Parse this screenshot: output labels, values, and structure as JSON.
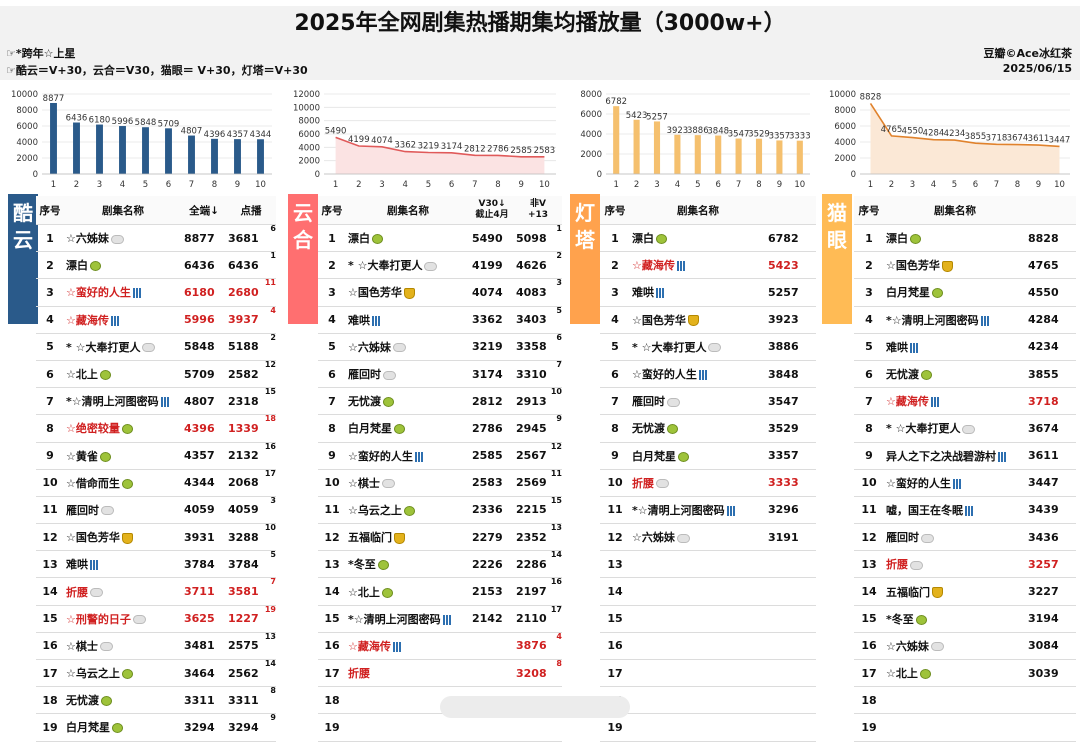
{
  "title": "2025年全网剧集热播期集均播放量（3000w+）",
  "notes": [
    "☞*跨年☆上星",
    "☞酷云＝V+30，云合＝V30，猫眼＝ V+30，灯塔＝V+30"
  ],
  "source": [
    "豆瓣©Ace冰红茶",
    "2025/06/15"
  ],
  "colors": {
    "kuyun": "#2a5a8a",
    "yunhe": "#ff6f70",
    "dengta": "#ffa24d",
    "maoyan": "#ffbb55",
    "line_yunhe": "#e05a5a",
    "line_maoyan": "#e0822c",
    "bar_dengta": "#f5c06e"
  },
  "chart_data": [
    {
      "type": "bar",
      "platform": "酷云",
      "categories": [
        "1",
        "2",
        "3",
        "4",
        "5",
        "6",
        "7",
        "8",
        "9",
        "10"
      ],
      "values": [
        8877,
        6436,
        6180,
        5996,
        5848,
        5709,
        4807,
        4396,
        4357,
        4344
      ],
      "yticks": [
        "10000",
        "8000",
        "6000",
        "4000",
        "2000",
        "0"
      ],
      "ylim": [
        0,
        10000
      ]
    },
    {
      "type": "area",
      "platform": "云合",
      "categories": [
        "1",
        "2",
        "3",
        "4",
        "5",
        "6",
        "7",
        "8",
        "9",
        "10"
      ],
      "values": [
        5490,
        4199,
        4074,
        3362,
        3219,
        3174,
        2812,
        2786,
        2585,
        2583
      ],
      "yticks": [
        "12000",
        "10000",
        "8000",
        "6000",
        "4000",
        "2000",
        "0"
      ],
      "ylim": [
        0,
        12000
      ]
    },
    {
      "type": "bar",
      "platform": "灯塔",
      "categories": [
        "1",
        "2",
        "3",
        "4",
        "5",
        "6",
        "7",
        "8",
        "9",
        "10"
      ],
      "values": [
        6782,
        5423,
        5257,
        3923,
        3886,
        3848,
        3547,
        3529,
        3357,
        3333
      ],
      "yticks": [
        "8000",
        "6000",
        "4000",
        "2000",
        "0"
      ],
      "ylim": [
        0,
        8000
      ]
    },
    {
      "type": "area",
      "platform": "猫眼",
      "categories": [
        "1",
        "2",
        "3",
        "4",
        "5",
        "6",
        "7",
        "8",
        "9",
        "10"
      ],
      "values": [
        8828,
        4765,
        4550,
        4284,
        4234,
        3855,
        3718,
        3674,
        3611,
        3447
      ],
      "yticks": [
        "10000",
        "8000",
        "6000",
        "4000",
        "2000",
        "0"
      ],
      "ylim": [
        0,
        10000
      ]
    }
  ],
  "tables": [
    {
      "tag": "酷云",
      "headers": [
        "序号",
        "剧集名称",
        "全端↓",
        "点播"
      ],
      "rows": [
        {
          "n": "1",
          "name": "☆六姊妹",
          "icon": "cloud-icon",
          "v": "8877",
          "v2": "3681",
          "r": "6"
        },
        {
          "n": "2",
          "name": "漂白",
          "icon": "green-dot-icon",
          "v": "6436",
          "v2": "6436",
          "r": "1"
        },
        {
          "n": "3",
          "name": "☆蛮好的人生",
          "icon": "bars-icon",
          "v": "6180",
          "v2": "2680",
          "r": "11",
          "red": true
        },
        {
          "n": "4",
          "name": "☆藏海传",
          "icon": "bars-icon",
          "v": "5996",
          "v2": "3937",
          "r": "4",
          "red": true
        },
        {
          "n": "5",
          "name": "* ☆大奉打更人",
          "icon": "cloud-icon",
          "v": "5848",
          "v2": "5188",
          "r": "2"
        },
        {
          "n": "6",
          "name": "☆北上",
          "icon": "green-dot-icon",
          "v": "5709",
          "v2": "2582",
          "r": "12"
        },
        {
          "n": "7",
          "name": "*☆清明上河图密码",
          "icon": "bars-icon",
          "v": "4807",
          "v2": "2318",
          "r": "15"
        },
        {
          "n": "8",
          "name": "☆绝密较量",
          "icon": "green-dot-icon",
          "v": "4396",
          "v2": "1339",
          "r": "18",
          "red": true
        },
        {
          "n": "9",
          "name": "☆黄雀",
          "icon": "green-dot-icon",
          "v": "4357",
          "v2": "2132",
          "r": "16"
        },
        {
          "n": "10",
          "name": "☆借命而生",
          "icon": "green-dot-icon",
          "v": "4344",
          "v2": "2068",
          "r": "17"
        },
        {
          "n": "11",
          "name": "雁回时",
          "icon": "cloud-icon",
          "v": "4059",
          "v2": "4059",
          "r": "3"
        },
        {
          "n": "12",
          "name": "☆国色芳华",
          "icon": "shield-icon",
          "v": "3931",
          "v2": "3288",
          "r": "10"
        },
        {
          "n": "13",
          "name": "难哄",
          "icon": "bars-icon",
          "v": "3784",
          "v2": "3784",
          "r": "5"
        },
        {
          "n": "14",
          "name": "折腰",
          "icon": "cloud-icon",
          "v": "3711",
          "v2": "3581",
          "r": "7",
          "red": true
        },
        {
          "n": "15",
          "name": "☆刑警的日子",
          "icon": "cloud-icon",
          "v": "3625",
          "v2": "1227",
          "r": "19",
          "red": true
        },
        {
          "n": "16",
          "name": "☆棋士",
          "icon": "cloud-icon",
          "v": "3481",
          "v2": "2575",
          "r": "13"
        },
        {
          "n": "17",
          "name": "☆乌云之上",
          "icon": "green-dot-icon",
          "v": "3464",
          "v2": "2562",
          "r": "14"
        },
        {
          "n": "18",
          "name": "无忧渡",
          "icon": "green-dot-icon",
          "v": "3311",
          "v2": "3311",
          "r": "8"
        },
        {
          "n": "19",
          "name": "白月梵星",
          "icon": "green-dot-icon",
          "v": "3294",
          "v2": "3294",
          "r": "9"
        }
      ]
    },
    {
      "tag": "云合",
      "headers": [
        "序号",
        "剧集名称",
        "V30↓\n截止4月",
        "非V\n+13"
      ],
      "rows": [
        {
          "n": "1",
          "name": "漂白",
          "icon": "green-dot-icon",
          "v": "5490",
          "v2": "5098",
          "r": "1"
        },
        {
          "n": "2",
          "name": "* ☆大奉打更人",
          "icon": "cloud-icon",
          "v": "4199",
          "v2": "4626",
          "r": "2"
        },
        {
          "n": "3",
          "name": "☆国色芳华",
          "icon": "shield-icon",
          "v": "4074",
          "v2": "4083",
          "r": "3"
        },
        {
          "n": "4",
          "name": "难哄",
          "icon": "bars-icon",
          "v": "3362",
          "v2": "3403",
          "r": "5"
        },
        {
          "n": "5",
          "name": "☆六姊妹",
          "icon": "cloud-icon",
          "v": "3219",
          "v2": "3358",
          "r": "6"
        },
        {
          "n": "6",
          "name": "雁回时",
          "icon": "cloud-icon",
          "v": "3174",
          "v2": "3310",
          "r": "7"
        },
        {
          "n": "7",
          "name": "无忧渡",
          "icon": "green-dot-icon",
          "v": "2812",
          "v2": "2913",
          "r": "10"
        },
        {
          "n": "8",
          "name": "白月梵星",
          "icon": "green-dot-icon",
          "v": "2786",
          "v2": "2945",
          "r": "9"
        },
        {
          "n": "9",
          "name": "☆蛮好的人生",
          "icon": "bars-icon",
          "v": "2585",
          "v2": "2567",
          "r": "12"
        },
        {
          "n": "10",
          "name": "☆棋士",
          "icon": "cloud-icon",
          "v": "2583",
          "v2": "2569",
          "r": "11"
        },
        {
          "n": "11",
          "name": "☆乌云之上",
          "icon": "green-dot-icon",
          "v": "2336",
          "v2": "2215",
          "r": "15"
        },
        {
          "n": "12",
          "name": "五福临门",
          "icon": "shield-icon",
          "v": "2279",
          "v2": "2352",
          "r": "13"
        },
        {
          "n": "13",
          "name": "*冬至",
          "icon": "green-dot-icon",
          "v": "2226",
          "v2": "2286",
          "r": "14"
        },
        {
          "n": "14",
          "name": "☆北上",
          "icon": "green-dot-icon",
          "v": "2153",
          "v2": "2197",
          "r": "16"
        },
        {
          "n": "15",
          "name": "*☆清明上河图密码",
          "icon": "bars-icon",
          "v": "2142",
          "v2": "2110",
          "r": "17"
        },
        {
          "n": "16",
          "name": "☆藏海传",
          "icon": "bars-icon",
          "v": "",
          "v2": "3876",
          "r": "4",
          "red": true
        },
        {
          "n": "17",
          "name": "折腰",
          "icon": "",
          "v": "",
          "v2": "3208",
          "r": "8",
          "red": true
        },
        {
          "n": "18",
          "name": "",
          "icon": "",
          "v": "",
          "v2": "",
          "r": ""
        },
        {
          "n": "19",
          "name": "",
          "icon": "",
          "v": "",
          "v2": "",
          "r": ""
        }
      ]
    },
    {
      "tag": "灯塔",
      "headers": [
        "序号",
        "剧集名称",
        ""
      ],
      "rows": [
        {
          "n": "1",
          "name": "漂白",
          "icon": "green-dot-icon",
          "v": "6782"
        },
        {
          "n": "2",
          "name": "☆藏海传",
          "icon": "bars-icon",
          "v": "5423",
          "red": true
        },
        {
          "n": "3",
          "name": "难哄",
          "icon": "bars-icon",
          "v": "5257"
        },
        {
          "n": "4",
          "name": "☆国色芳华",
          "icon": "shield-icon",
          "v": "3923"
        },
        {
          "n": "5",
          "name": "* ☆大奉打更人",
          "icon": "cloud-icon",
          "v": "3886"
        },
        {
          "n": "6",
          "name": "☆蛮好的人生",
          "icon": "bars-icon",
          "v": "3848"
        },
        {
          "n": "7",
          "name": "雁回时",
          "icon": "cloud-icon",
          "v": "3547"
        },
        {
          "n": "8",
          "name": "无忧渡",
          "icon": "green-dot-icon",
          "v": "3529"
        },
        {
          "n": "9",
          "name": "白月梵星",
          "icon": "green-dot-icon",
          "v": "3357"
        },
        {
          "n": "10",
          "name": "折腰",
          "icon": "cloud-icon",
          "v": "3333",
          "red": true
        },
        {
          "n": "11",
          "name": "*☆清明上河图密码",
          "icon": "bars-icon",
          "v": "3296"
        },
        {
          "n": "12",
          "name": "☆六姊妹",
          "icon": "cloud-icon",
          "v": "3191"
        },
        {
          "n": "13",
          "name": "",
          "icon": "",
          "v": ""
        },
        {
          "n": "14",
          "name": "",
          "icon": "",
          "v": ""
        },
        {
          "n": "15",
          "name": "",
          "icon": "",
          "v": ""
        },
        {
          "n": "16",
          "name": "",
          "icon": "",
          "v": ""
        },
        {
          "n": "17",
          "name": "",
          "icon": "",
          "v": ""
        },
        {
          "n": "18",
          "name": "",
          "icon": "",
          "v": ""
        },
        {
          "n": "19",
          "name": "",
          "icon": "",
          "v": ""
        }
      ]
    },
    {
      "tag": "猫眼",
      "headers": [
        "序号",
        "剧集名称",
        ""
      ],
      "rows": [
        {
          "n": "1",
          "name": "漂白",
          "icon": "green-dot-icon",
          "v": "8828"
        },
        {
          "n": "2",
          "name": "☆国色芳华",
          "icon": "shield-icon",
          "v": "4765"
        },
        {
          "n": "3",
          "name": "白月梵星",
          "icon": "green-dot-icon",
          "v": "4550"
        },
        {
          "n": "4",
          "name": "*☆清明上河图密码",
          "icon": "bars-icon",
          "v": "4284"
        },
        {
          "n": "5",
          "name": "难哄",
          "icon": "bars-icon",
          "v": "4234"
        },
        {
          "n": "6",
          "name": "无忧渡",
          "icon": "green-dot-icon",
          "v": "3855"
        },
        {
          "n": "7",
          "name": "☆藏海传",
          "icon": "bars-icon",
          "v": "3718",
          "red": true
        },
        {
          "n": "8",
          "name": "* ☆大奉打更人",
          "icon": "cloud-icon",
          "v": "3674"
        },
        {
          "n": "9",
          "name": "异人之下之决战碧游村",
          "icon": "bars-icon",
          "v": "3611"
        },
        {
          "n": "10",
          "name": "☆蛮好的人生",
          "icon": "bars-icon",
          "v": "3447"
        },
        {
          "n": "11",
          "name": "嘘，国王在冬眠",
          "icon": "bars-icon",
          "v": "3439"
        },
        {
          "n": "12",
          "name": "雁回时",
          "icon": "cloud-icon",
          "v": "3436"
        },
        {
          "n": "13",
          "name": "折腰",
          "icon": "cloud-icon",
          "v": "3257",
          "red": true
        },
        {
          "n": "14",
          "name": "五福临门",
          "icon": "shield-icon",
          "v": "3227"
        },
        {
          "n": "15",
          "name": "*冬至",
          "icon": "green-dot-icon",
          "v": "3194"
        },
        {
          "n": "16",
          "name": "☆六姊妹",
          "icon": "cloud-icon",
          "v": "3084"
        },
        {
          "n": "17",
          "name": "☆北上",
          "icon": "green-dot-icon",
          "v": "3039"
        },
        {
          "n": "18",
          "name": "",
          "icon": "",
          "v": ""
        },
        {
          "n": "19",
          "name": "",
          "icon": "",
          "v": ""
        }
      ]
    }
  ]
}
